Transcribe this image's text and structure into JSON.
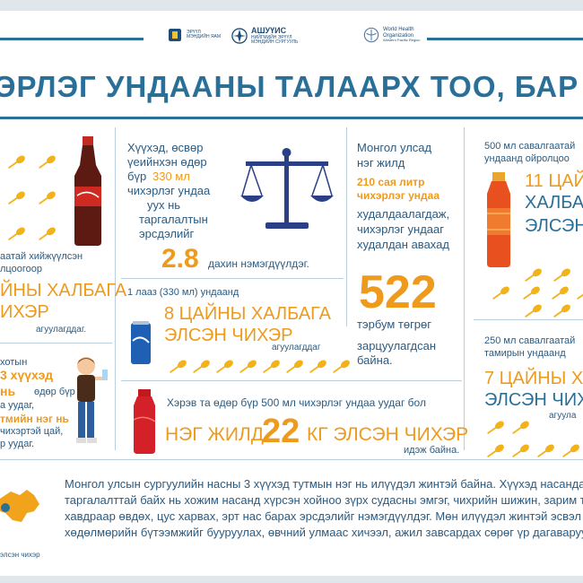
{
  "colors": {
    "primary_blue": "#2a6f98",
    "accent_orange": "#ee9a1d",
    "text_blue": "#2a5b82"
  },
  "header": {
    "logo1": {
      "line1": "ЭРҮҮЛ",
      "line2": "МЭНДИЙН ЯАМ"
    },
    "logo2": {
      "name": "АШУҮИС",
      "line1": "НИЙГМИЙН ЭРҮҮЛ",
      "line2": "МЭНДИЙН СУРГУУЛЬ"
    },
    "logo3": {
      "line1": "World Health",
      "line2": "Organization",
      "line3": "Western Pacific Region"
    }
  },
  "title": "ЭРЛЭГ УНДААНЫ ТАЛААРХ ТОО, БАР",
  "left_col": {
    "line_a": "аатай хийжүүлсэн",
    "line_b": "лцоогоор",
    "big1": "ЙНЫ ХАЛБАГА",
    "big2": "ИХЭР",
    "small": "агуулагддаг.",
    "p2": [
      "хотын",
      "3 хүүхэд",
      "нь",
      "өдөр бүр",
      "а уудаг,",
      "тмийн нэг нь",
      "чихэртэй цай,",
      "р уудаг."
    ]
  },
  "center_top": {
    "lines": [
      "Хүүхэд, өсвөр",
      "үеийнхэн өдөр",
      "бүр",
      "330 мл",
      "чихэрлэг ундаа",
      "уух нь",
      "таргалалтын",
      "эрсдэлийг"
    ],
    "value": "2.8",
    "tail": "дахин нэмэгдүүлдэг."
  },
  "can_block": {
    "caption": "1 лааз (330 мл) ундаанд",
    "big1": "8 ЦАЙНЫ ХАЛБАГА",
    "big2": "ЭЛСЭН ЧИХЭР",
    "small": "агуулагддаг"
  },
  "mongolia": {
    "l1": "Монгол улсад",
    "l2": "нэг жилд",
    "l3": "210 сая литр",
    "l4": "чихэрлэг ундаа",
    "l5": "худалдаалагдаж,",
    "l6": "чихэрлэг ундааг",
    "l7": "худалдан авахад",
    "value": "522",
    "unit": "тэрбум төгрөг",
    "l8": "зарцуулагдсан",
    "l9": "байна."
  },
  "right_top": {
    "l1": "500 мл савалгаатай",
    "l2": "ундаанд ойролцоо",
    "big1": "11 ЦАЙН",
    "big2": "ХАЛБА",
    "big3": "ЭЛСЭН"
  },
  "right_bottom": {
    "l1": "250 мл савалгаатай",
    "l2": "тамирын ундаанд",
    "big1": "7 ЦАЙНЫ Х",
    "big2": "ЭЛСЭН ЧИХ",
    "small": "агуула"
  },
  "yearly": {
    "intro": "Хэрэв та өдөр бүр 500 мл чихэрлэг ундаа уудаг бол",
    "big_a": "НЭГ ЖИЛД",
    "value": "22",
    "big_b": "КГ ЭЛСЭН ЧИХЭР",
    "tail": "идэж байна."
  },
  "paragraph": [
    "Монгол улсын сургуулийн насны 3 хүүхэд  тутмын нэг нь илүүдэл жинтэй байна. Хүүхэд насандаа и",
    "таргалалттай байх нь хожим насанд хүрсэн хойноо зүрх судасны эмгэг, чихрийн шижин, зарим тө",
    "хавдраар өвдөх, цус харвах, эрт нас барах эрсдэлийг нэмэгдүүлдэг.  Мөн илүүдэл жинтэй эсвэл тар",
    "хөдөлмөрийн бүтээмжийг бууруулах, өвчний улмаас хичээл, ажил завсардах сөрөг үр дагаваруудт"
  ],
  "footer_note": "элсэн чихэр"
}
